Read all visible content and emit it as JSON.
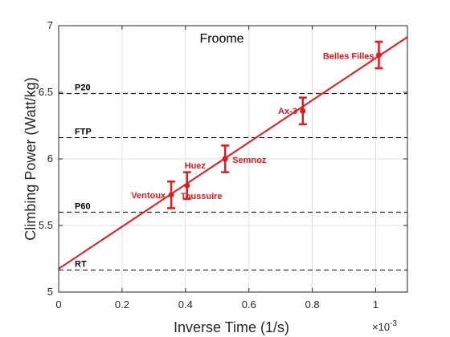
{
  "chart_data": {
    "type": "scatter",
    "title": "Froome",
    "xlabel": "Inverse Time (1/s)",
    "ylabel": "Climbing Power (Watt/kg)",
    "x_exponent_label": "×10",
    "x_exponent_power": "-3",
    "xlim": [
      0,
      1.1
    ],
    "ylim": [
      5,
      7
    ],
    "xticks": [
      0,
      0.2,
      0.4,
      0.6,
      0.8,
      1
    ],
    "xtick_labels": [
      "0",
      "0.2",
      "0.4",
      "0.6",
      "0.8",
      "1"
    ],
    "yticks": [
      5,
      5.5,
      6,
      6.5,
      7
    ],
    "ytick_labels": [
      "5",
      "5.5",
      "6",
      "6.5",
      "7"
    ],
    "grid": true,
    "colors": {
      "data": "#e31a1c",
      "reference": "#000000",
      "grid": "#dfdfdf",
      "axis": "#262626"
    },
    "points": [
      {
        "label": "Ventoux",
        "x": 0.355,
        "y": 5.73,
        "err": 0.1
      },
      {
        "label": "Toussuire",
        "x": 0.405,
        "y": 5.8,
        "err": 0.1
      },
      {
        "label": "Semnoz",
        "x": 0.525,
        "y": 6.0,
        "err": 0.1
      },
      {
        "label": "Ax-3",
        "x": 0.77,
        "y": 6.36,
        "err": 0.1
      },
      {
        "label": "Belles Filles",
        "x": 1.01,
        "y": 6.78,
        "err": 0.1
      }
    ],
    "extra_labels": [
      {
        "label": "Huez",
        "x": 0.405,
        "y": 5.8
      }
    ],
    "fit_line": {
      "x": [
        0,
        1.1
      ],
      "y": [
        5.175,
        6.915
      ]
    },
    "reference_lines": [
      {
        "label": "P20",
        "y": 6.49
      },
      {
        "label": "FTP",
        "y": 6.16
      },
      {
        "label": "P60",
        "y": 5.6
      },
      {
        "label": "RT",
        "y": 5.165
      }
    ]
  }
}
